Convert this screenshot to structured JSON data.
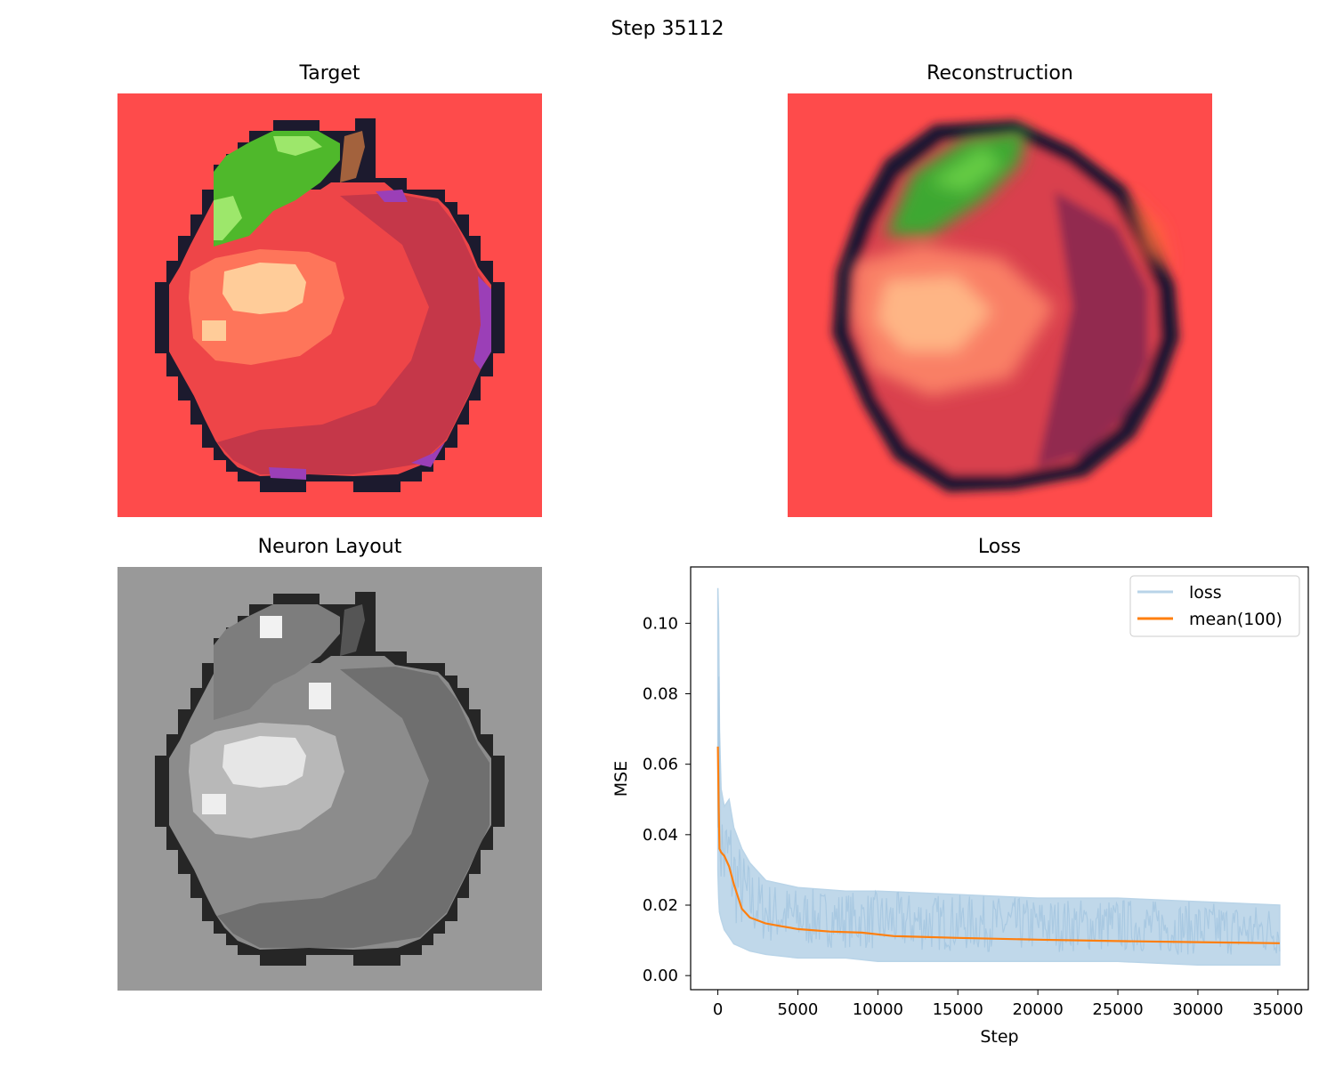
{
  "figure": {
    "title": "Step 35112"
  },
  "panels": {
    "target": {
      "title": "Target"
    },
    "reconstruction": {
      "title": "Reconstruction"
    },
    "neuron_layout": {
      "title": "Neuron Layout"
    },
    "loss": {
      "title": "Loss"
    }
  },
  "colors": {
    "background_red": "#fe4b4b",
    "outline": "#1c1a2e",
    "leaf_green": "#4fb82b",
    "leaf_light": "#9de76b",
    "stem_brown": "#a3623d",
    "apple_red": "#ee4548",
    "apple_dark": "#b7334a",
    "highlight": "#ffcc99",
    "rim_purple": "#9b3fb7",
    "gray_bg": "#999999",
    "loss_line": "#b9d4e8",
    "mean_line": "#ff7f0e"
  },
  "chart_data": {
    "type": "line",
    "title": "Loss",
    "xlabel": "Step",
    "ylabel": "MSE",
    "xlim": [
      -1700,
      36900
    ],
    "ylim": [
      -0.004,
      0.116
    ],
    "xticks": [
      0,
      5000,
      10000,
      15000,
      20000,
      25000,
      30000,
      35000
    ],
    "yticks": [
      0.0,
      0.02,
      0.04,
      0.06,
      0.08,
      0.1
    ],
    "ytick_labels": [
      "0.00",
      "0.02",
      "0.04",
      "0.06",
      "0.08",
      "0.10"
    ],
    "legend": "top-right",
    "series": [
      {
        "name": "loss",
        "color": "#b9d4e8",
        "band": {
          "x": [
            0,
            50,
            100,
            200,
            400,
            700,
            1000,
            1500,
            2000,
            3000,
            5000,
            8000,
            10000,
            15000,
            20000,
            25000,
            30000,
            35112
          ],
          "upper": [
            0.11,
            0.1,
            0.07,
            0.053,
            0.048,
            0.05,
            0.042,
            0.036,
            0.032,
            0.027,
            0.025,
            0.024,
            0.024,
            0.023,
            0.022,
            0.022,
            0.021,
            0.02
          ],
          "lower": [
            0.03,
            0.022,
            0.018,
            0.016,
            0.013,
            0.011,
            0.009,
            0.008,
            0.007,
            0.006,
            0.005,
            0.005,
            0.004,
            0.004,
            0.004,
            0.004,
            0.003,
            0.003
          ]
        }
      },
      {
        "name": "mean(100)",
        "color": "#ff7f0e",
        "x": [
          0,
          50,
          100,
          200,
          400,
          700,
          1000,
          1500,
          2000,
          3000,
          4000,
          5000,
          7000,
          9000,
          11000,
          15000,
          20000,
          25000,
          30000,
          35112
        ],
        "y": [
          0.065,
          0.048,
          0.036,
          0.035,
          0.034,
          0.031,
          0.026,
          0.019,
          0.0165,
          0.0148,
          0.014,
          0.0132,
          0.0125,
          0.0122,
          0.0112,
          0.0107,
          0.0102,
          0.0098,
          0.0095,
          0.0092
        ]
      }
    ]
  }
}
